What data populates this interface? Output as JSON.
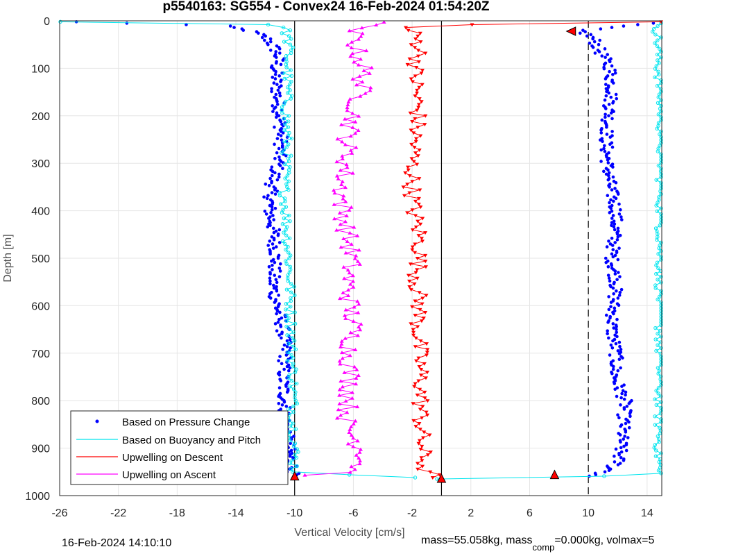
{
  "chart_data": {
    "type": "scatter",
    "title": "p5540163: SG554 - Convex24 16-Feb-2024 01:54:20Z",
    "xlabel": "Vertical Velocity [cm/s]",
    "ylabel": "Depth [m]",
    "xlim": [
      -26,
      15
    ],
    "ylim": [
      0,
      1000
    ],
    "y_reversed": true,
    "grid": true,
    "xticks": [
      -26,
      -22,
      -18,
      -14,
      -10,
      -6,
      -2,
      2,
      6,
      10,
      14
    ],
    "yticks": [
      0,
      100,
      200,
      300,
      400,
      500,
      600,
      700,
      800,
      900,
      1000
    ],
    "vertical_lines": [
      {
        "x": -10,
        "style": "solid"
      },
      {
        "x": 0,
        "style": "solid"
      },
      {
        "x": 10,
        "style": "dashed"
      }
    ],
    "legend_position": "bottom-left",
    "series": [
      {
        "name": "Based on Pressure Change",
        "color": "#0000ff",
        "marker": "dot",
        "profiles": [
          {
            "depth": [
              2,
              10,
              20,
              30,
              40,
              60,
              80,
              100,
              150,
              200,
              250,
              300,
              350,
              400,
              450,
              500,
              550,
              600,
              650,
              700,
              750,
              800,
              850,
              900,
              940,
              960
            ],
            "velocity": [
              -25,
              -15,
              -13.2,
              -12.3,
              -11.8,
              -11.3,
              -11.1,
              -11.3,
              -11.2,
              -11.0,
              -10.9,
              -11.1,
              -11.6,
              -11.7,
              -11.4,
              -11.3,
              -11.5,
              -11.2,
              -10.8,
              -10.6,
              -10.8,
              -10.7,
              -10.6,
              -10.4,
              -10.2,
              -10.1
            ]
          },
          {
            "depth": [
              960,
              950,
              930,
              900,
              850,
              800,
              750,
              700,
              650,
              600,
              550,
              500,
              450,
              400,
              350,
              300,
              250,
              200,
              150,
              100,
              60,
              40,
              20,
              5
            ],
            "velocity": [
              10.0,
              11.2,
              12.0,
              12.2,
              12.4,
              12.5,
              11.8,
              11.9,
              11.6,
              11.7,
              11.9,
              11.6,
              11.8,
              11.9,
              11.5,
              11.3,
              11.2,
              11.4,
              11.6,
              11.5,
              10.7,
              10.4,
              9.5,
              14
            ]
          }
        ]
      },
      {
        "name": "Based on Buoyancy and Pitch",
        "color": "#00e5ee",
        "marker": "circle",
        "profiles": [
          {
            "depth": [
              2,
              4,
              10,
              20,
              50,
              100,
              150,
              200,
              250,
              300,
              350,
              400,
              450,
              500,
              550,
              600,
              650,
              700,
              750,
              800,
              850,
              900,
              950,
              965
            ],
            "velocity": [
              -26,
              -13,
              -10.9,
              -10.6,
              -10.4,
              -10.5,
              -10.5,
              -10.6,
              -10.5,
              -10.6,
              -10.7,
              -10.6,
              -10.5,
              -10.4,
              -10.3,
              -10.3,
              -10.2,
              -10.2,
              -10.1,
              -10.1,
              -10.1,
              -10.0,
              -10.0,
              0
            ]
          },
          {
            "depth": [
              965,
              960,
              955,
              200,
              100,
              20,
              5
            ],
            "velocity": [
              0,
              10,
              14.8,
              15,
              14.8,
              14.7,
              15
            ]
          }
        ]
      },
      {
        "name": "Upwelling on Descent",
        "color": "#ff0000",
        "marker": "triangle-down",
        "profiles": [
          {
            "depth": [
              2,
              10,
              30,
              60,
              100,
              150,
              200,
              250,
              300,
              350,
              400,
              450,
              500,
              550,
              600,
              650,
              700,
              750,
              800,
              850,
              900,
              950,
              963
            ],
            "velocity": [
              15,
              -2.5,
              -1.8,
              -1.4,
              -1.8,
              -1.7,
              -1.6,
              -1.8,
              -2.0,
              -2.0,
              -1.9,
              -1.5,
              -1.5,
              -1.7,
              -1.5,
              -1.6,
              -1.5,
              -1.4,
              -1.4,
              -1.4,
              -1.3,
              -1.2,
              0
            ]
          }
        ]
      },
      {
        "name": "Upwelling on Ascent",
        "color": "#ff00ff",
        "marker": "triangle-up",
        "profiles": [
          {
            "depth": [
              960,
              950,
              920,
              900,
              850,
              800,
              750,
              700,
              650,
              600,
              550,
              500,
              450,
              400,
              350,
              300,
              250,
              200,
              150,
              100,
              60,
              15,
              3
            ],
            "velocity": [
              -10,
              -6.0,
              -5.2,
              -5.5,
              -6.5,
              -6.3,
              -6.2,
              -6.3,
              -6.0,
              -6.2,
              -6.4,
              -6.1,
              -6.4,
              -6.7,
              -6.8,
              -6.5,
              -6.4,
              -6.0,
              -5.5,
              -5.3,
              -5.8,
              -6,
              -4
            ]
          }
        ]
      }
    ],
    "special_markers": [
      {
        "x": -10,
        "depth": 960,
        "shape": "triangle-up",
        "color": "#ff0000"
      },
      {
        "x": 0,
        "depth": 965,
        "shape": "triangle-up",
        "color": "#ff0000"
      },
      {
        "x": 7.7,
        "depth": 957,
        "shape": "triangle-up",
        "color": "#ff0000"
      },
      {
        "x": 8.8,
        "depth": 22,
        "shape": "triangle-left",
        "color": "#ff0000"
      }
    ]
  },
  "legend": {
    "items": [
      {
        "label": "Based on Pressure Change",
        "color": "#0000ff",
        "kind": "dot"
      },
      {
        "label": "Based on Buoyancy and Pitch",
        "color": "#00e5ee",
        "kind": "line"
      },
      {
        "label": "Upwelling on Descent",
        "color": "#ff0000",
        "kind": "line"
      },
      {
        "label": "Upwelling on Ascent",
        "color": "#ff00ff",
        "kind": "line"
      }
    ]
  },
  "footer": {
    "timestamp": "16-Feb-2024 14:10:10",
    "mass_text": "mass=55.058kg, mass",
    "comp_sub": "comp",
    "comp_text": "=0.000kg, volmax=5"
  }
}
